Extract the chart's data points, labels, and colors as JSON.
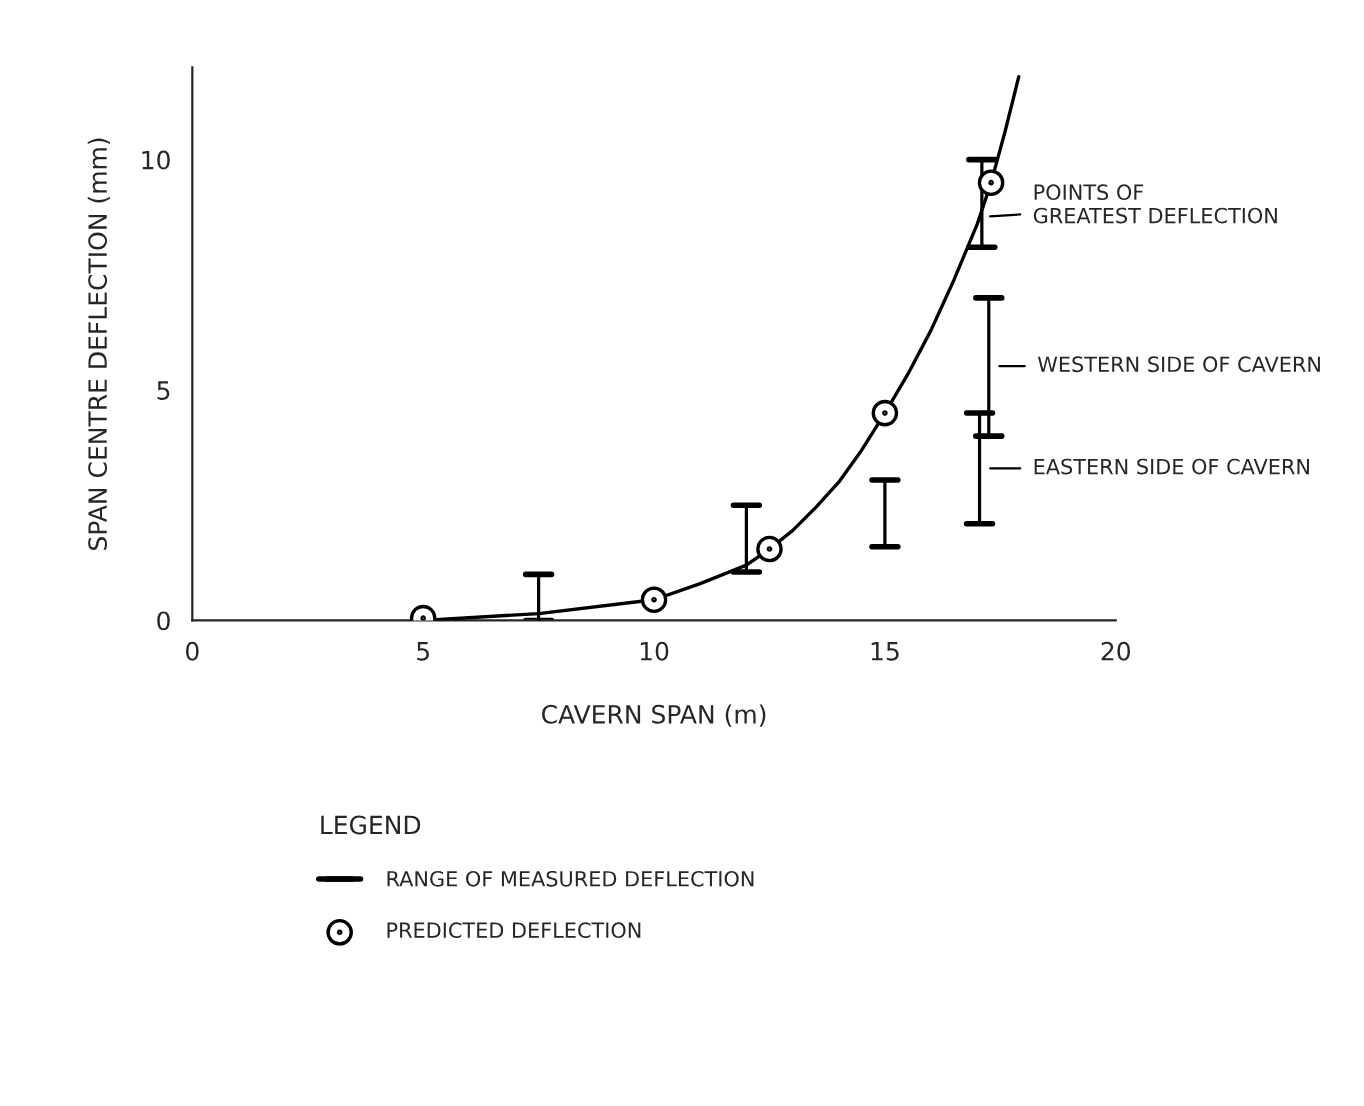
{
  "chart_data": {
    "type": "scatter",
    "xlabel": "CAVERN SPAN (m)",
    "ylabel": "SPAN CENTRE DEFLECTION (mm)",
    "xlim": [
      0,
      20
    ],
    "ylim": [
      0,
      12
    ],
    "xticks": [
      0,
      5,
      10,
      15,
      20
    ],
    "yticks": [
      0,
      5,
      10
    ],
    "grid": false,
    "legend": "bottom",
    "legend_title": "LEGEND",
    "series": [
      {
        "type": "bar",
        "name": "RANGE OF MEASURED DEFLECTION",
        "color": "#000000",
        "x": [
          7.5,
          12,
          15,
          17.05,
          17.1,
          17.25
        ],
        "base": [
          0,
          1.05,
          1.6,
          2.1,
          8.1,
          4.0
        ],
        "values": [
          1.0,
          1.45,
          1.45,
          2.4,
          1.9,
          3.0
        ]
      },
      {
        "name": "PREDICTED DEFLECTION",
        "color": "#000000",
        "marker": "circle",
        "x": [
          5,
          10,
          12.5,
          15,
          17.3
        ],
        "values": [
          0.05,
          0.45,
          1.55,
          4.5,
          9.5
        ]
      },
      {
        "type": "line",
        "color": "#000000",
        "marker": "none",
        "x": [
          5,
          7.5,
          10,
          11,
          12,
          12.5,
          13,
          13.5,
          14,
          14.5,
          15,
          15.5,
          16,
          16.5,
          17,
          17.3,
          17.6,
          17.9
        ],
        "values": [
          0,
          0.15,
          0.45,
          0.8,
          1.2,
          1.55,
          1.95,
          2.45,
          3.0,
          3.7,
          4.5,
          5.35,
          6.3,
          7.4,
          8.6,
          9.5,
          10.6,
          11.8
        ]
      }
    ],
    "annotations": [
      "POINTS OF\nGREATEST DEFLECTION",
      "WESTERN SIDE OF CAVERN",
      "EASTERN SIDE OF CAVERN"
    ]
  }
}
